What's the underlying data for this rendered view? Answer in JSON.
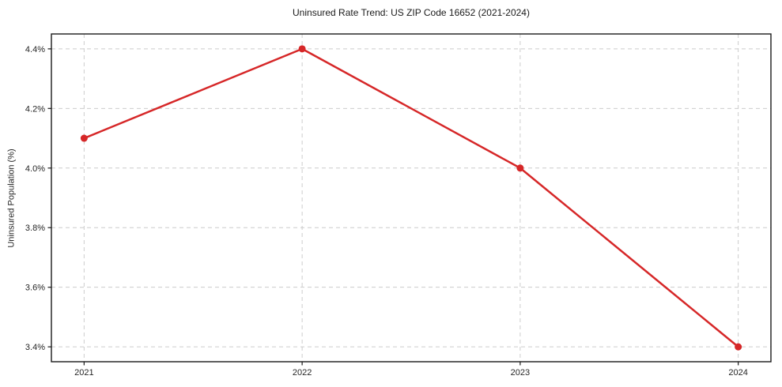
{
  "chart_data": {
    "type": "line",
    "title": "Uninsured Rate Trend: US ZIP Code 16652 (2021-2024)",
    "xlabel": "",
    "ylabel": "Uninsured Population (%)",
    "x": [
      2021,
      2022,
      2023,
      2024
    ],
    "x_tick_labels": [
      "2021",
      "2022",
      "2023",
      "2024"
    ],
    "series": [
      {
        "name": "Uninsured Population (%)",
        "values": [
          4.1,
          4.4,
          4.0,
          3.4
        ],
        "color": "#d62728",
        "marker": "circle",
        "marker_radius": 4.5,
        "line_width": 2.5
      }
    ],
    "y_ticks": [
      3.4,
      3.6,
      3.8,
      4.0,
      4.2,
      4.4
    ],
    "y_tick_labels": [
      "3.4%",
      "3.6%",
      "3.8%",
      "4.0%",
      "4.2%",
      "4.4%"
    ],
    "xlim": [
      2020.85,
      2024.15
    ],
    "ylim": [
      3.35,
      4.45
    ],
    "grid": true,
    "grid_line_style": "dashed",
    "legend_position": "none"
  },
  "style": {
    "grid_color": "#cccccc",
    "axis_color": "#1a1a1a",
    "tick_color": "#1a1a1a",
    "text_color": "#262626",
    "background": "#ffffff"
  }
}
